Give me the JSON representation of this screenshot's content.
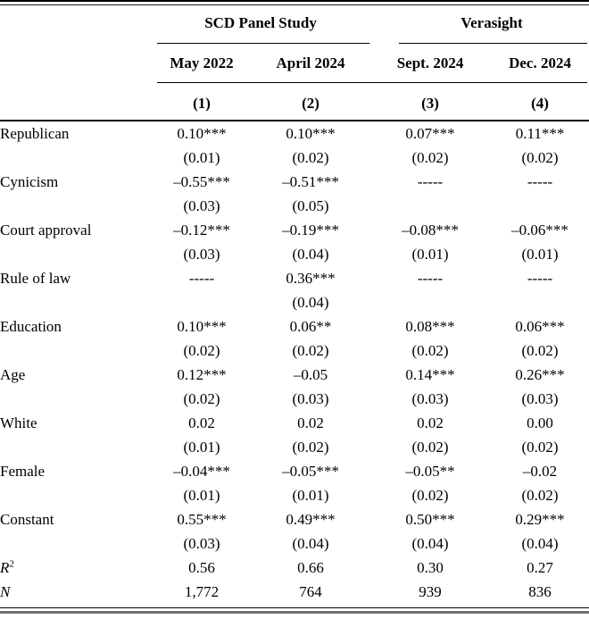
{
  "table": {
    "col_groups": [
      {
        "label": "SCD Panel Study"
      },
      {
        "label": "Verasight"
      }
    ],
    "col_headers": [
      "May 2022",
      "April 2024",
      "Sept. 2024",
      "Dec. 2024"
    ],
    "col_numbers": [
      "(1)",
      "(2)",
      "(3)",
      "(4)"
    ],
    "rows": [
      {
        "label": "Republican",
        "coefs": [
          "0.10***",
          "0.10***",
          "0.07***",
          "0.11***"
        ],
        "ses": [
          "(0.01)",
          "(0.02)",
          "(0.02)",
          "(0.02)"
        ]
      },
      {
        "label": "Cynicism",
        "coefs": [
          "–0.55***",
          "–0.51***",
          "-----",
          "-----"
        ],
        "ses": [
          "(0.03)",
          "(0.05)",
          "",
          ""
        ]
      },
      {
        "label": "Court approval",
        "coefs": [
          "–0.12***",
          "–0.19***",
          "–0.08***",
          "–0.06***"
        ],
        "ses": [
          "(0.03)",
          "(0.04)",
          "(0.01)",
          "(0.01)"
        ]
      },
      {
        "label": "Rule of law",
        "coefs": [
          "-----",
          "0.36***",
          "-----",
          "-----"
        ],
        "ses": [
          "",
          "(0.04)",
          "",
          ""
        ]
      },
      {
        "label": "Education",
        "coefs": [
          "0.10***",
          "0.06**",
          "0.08***",
          "0.06***"
        ],
        "ses": [
          "(0.02)",
          "(0.02)",
          "(0.02)",
          "(0.02)"
        ]
      },
      {
        "label": "Age",
        "coefs": [
          "0.12***",
          "–0.05",
          "0.14***",
          "0.26***"
        ],
        "ses": [
          "(0.02)",
          "(0.03)",
          "(0.03)",
          "(0.03)"
        ]
      },
      {
        "label": "White",
        "coefs": [
          "0.02",
          "0.02",
          "0.02",
          "0.00"
        ],
        "ses": [
          "(0.01)",
          "(0.02)",
          "(0.02)",
          "(0.02)"
        ]
      },
      {
        "label": "Female",
        "coefs": [
          "–0.04***",
          "–0.05***",
          "–0.05**",
          "–0.02"
        ],
        "ses": [
          "(0.01)",
          "(0.01)",
          "(0.02)",
          "(0.02)"
        ]
      },
      {
        "label": "Constant",
        "coefs": [
          "0.55***",
          "0.49***",
          "0.50***",
          "0.29***"
        ],
        "ses": [
          "(0.03)",
          "(0.04)",
          "(0.04)",
          "(0.04)"
        ]
      }
    ],
    "stats": [
      {
        "label_base": "R",
        "label_sup": "2",
        "values": [
          "0.56",
          "0.66",
          "0.30",
          "0.27"
        ]
      },
      {
        "label": "N",
        "values": [
          "1,772",
          "764",
          "939",
          "836"
        ]
      }
    ]
  }
}
